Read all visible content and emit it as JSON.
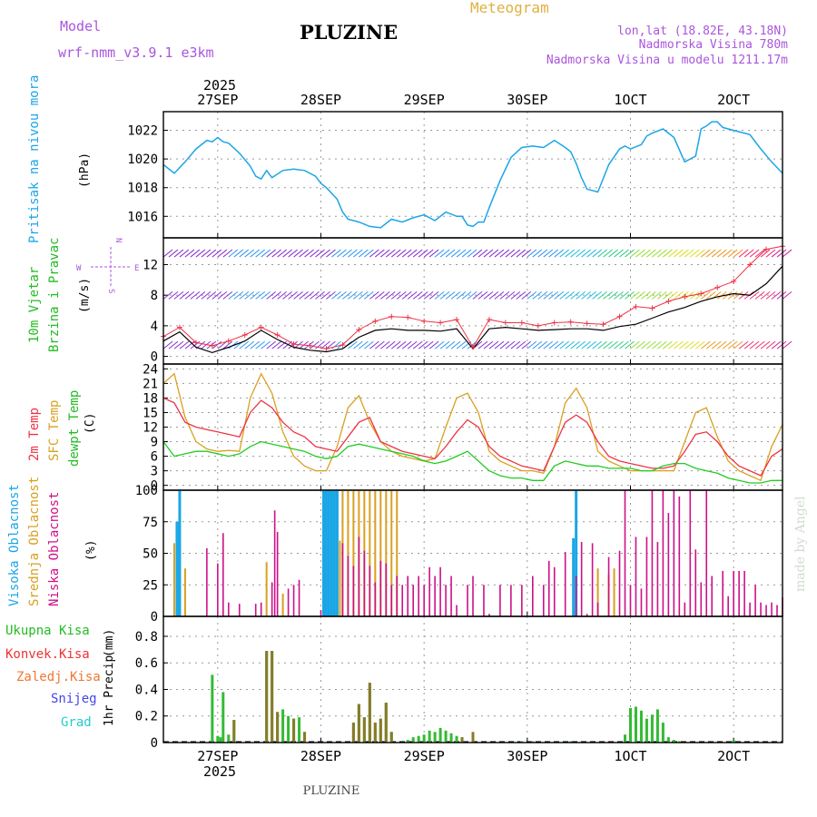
{
  "header": {
    "model_label": "Model",
    "model_name": "wrf-nmm_v3.9.1 e3km",
    "station": "PLUZINE",
    "meteogram_label": "Meteogram",
    "lonlat": "lon,lat (18.82E, 43.18N)",
    "altitude": "Nadmorska Visina 780m",
    "model_altitude": "Nadmorska Visina u modelu 1211.17m",
    "footer_station": "PLUZINE",
    "watermark": "made by Angel"
  },
  "colors": {
    "pressure": "#1ba6e6",
    "wind_speed_axis": "#22bb22",
    "wind_dir_axis": "#22bb22",
    "t2m": "#ee3344",
    "tsfc": "#d9a020",
    "dewpt": "#22cc22",
    "cloud_high": "#1ba6e6",
    "cloud_mid": "#d9a020",
    "cloud_low": "#cc1188",
    "precip_total": "#33bb33",
    "precip_conv": "#ee3333",
    "precip_frozen": "#ee7733",
    "precip_snow": "#4444ee",
    "precip_graupel": "#22cccc",
    "title_purple": "#aa55dd",
    "meteogram_gold": "#e0b040"
  },
  "time_axis": {
    "year": "2025",
    "start_hour": 0,
    "end_hour": 114,
    "days": [
      {
        "label": "27SEP",
        "hour": 10
      },
      {
        "label": "28SEP",
        "hour": 29
      },
      {
        "label": "29SEP",
        "hour": 48
      },
      {
        "label": "30SEP",
        "hour": 67
      },
      {
        "label": "1OCT",
        "hour": 86
      },
      {
        "label": "2OCT",
        "hour": 105
      }
    ]
  },
  "chart_data": [
    {
      "type": "line",
      "id": "pressure",
      "ylabel_main": "Pritisak na nivou mora",
      "ylabel_unit": "(hPa)",
      "ylim": [
        1014.5,
        1023.3
      ],
      "yticks": [
        1016,
        1018,
        1020,
        1022
      ],
      "x": [
        0,
        2,
        4,
        6,
        8,
        9,
        10,
        11,
        12,
        14,
        16,
        17,
        18,
        19,
        20,
        22,
        24,
        26,
        28,
        29,
        30,
        32,
        33,
        34,
        36,
        38,
        40,
        42,
        44,
        46,
        48,
        50,
        52,
        54,
        55,
        56,
        57,
        58,
        59,
        60,
        62,
        64,
        66,
        68,
        70,
        72,
        74,
        75,
        76,
        77,
        78,
        80,
        82,
        84,
        85,
        86,
        88,
        89,
        90,
        92,
        94,
        96,
        98,
        99,
        100,
        101,
        102,
        103,
        104,
        106,
        108,
        110,
        112,
        114
      ],
      "series": [
        {
          "name": "MSLP",
          "values": [
            1019.6,
            1019.0,
            1019.8,
            1020.7,
            1021.3,
            1021.2,
            1021.5,
            1021.2,
            1021.1,
            1020.4,
            1019.5,
            1018.8,
            1018.6,
            1019.2,
            1018.7,
            1019.2,
            1019.3,
            1019.2,
            1018.8,
            1018.3,
            1018.0,
            1017.2,
            1016.3,
            1015.8,
            1015.6,
            1015.3,
            1015.2,
            1015.8,
            1015.6,
            1015.9,
            1016.1,
            1015.7,
            1016.3,
            1016.0,
            1016.0,
            1015.4,
            1015.3,
            1015.6,
            1015.6,
            1016.6,
            1018.5,
            1020.1,
            1020.8,
            1020.9,
            1020.8,
            1021.3,
            1020.8,
            1020.5,
            1019.7,
            1018.7,
            1017.9,
            1017.7,
            1019.6,
            1020.7,
            1020.9,
            1020.7,
            1021.0,
            1021.6,
            1021.8,
            1022.1,
            1021.5,
            1019.8,
            1020.2,
            1022.1,
            1022.3,
            1022.6,
            1022.6,
            1022.2,
            1022.1,
            1021.9,
            1021.7,
            1020.7,
            1019.8,
            1019.0
          ]
        }
      ]
    },
    {
      "type": "line",
      "id": "wind",
      "ylabel_main": "10m Vjetar",
      "ylabel_sub": "Brzina i Pravac",
      "ylabel_unit": "(m/s)",
      "ylim": [
        -1,
        15.5
      ],
      "yticks": [
        0,
        4,
        8,
        12
      ],
      "compass": [
        "N",
        "E",
        "S",
        "W"
      ],
      "x": [
        0,
        3,
        6,
        9,
        12,
        15,
        18,
        21,
        24,
        27,
        30,
        33,
        36,
        39,
        42,
        45,
        48,
        51,
        54,
        57,
        60,
        63,
        66,
        69,
        72,
        75,
        78,
        81,
        84,
        87,
        90,
        93,
        96,
        99,
        102,
        105,
        108,
        111,
        114
      ],
      "series": [
        {
          "name": "speed",
          "values": [
            2.0,
            3.2,
            1.2,
            0.5,
            1.2,
            2.0,
            3.4,
            2.2,
            1.2,
            0.8,
            0.6,
            1.0,
            2.5,
            3.4,
            3.6,
            3.4,
            3.4,
            3.3,
            3.6,
            1.0,
            3.6,
            3.8,
            3.6,
            3.4,
            3.5,
            3.6,
            3.6,
            3.4,
            3.9,
            4.2,
            5.0,
            5.8,
            6.4,
            7.2,
            7.8,
            8.2,
            8.0,
            9.5,
            11.8
          ]
        },
        {
          "name": "gust",
          "values": [
            2.6,
            3.8,
            1.8,
            1.4,
            2.0,
            2.8,
            3.8,
            2.8,
            1.6,
            1.4,
            1.0,
            1.5,
            3.5,
            4.6,
            5.2,
            5.1,
            4.6,
            4.4,
            4.8,
            1.2,
            4.8,
            4.4,
            4.4,
            4.0,
            4.4,
            4.5,
            4.3,
            4.2,
            5.2,
            6.5,
            6.3,
            7.2,
            7.8,
            8.2,
            9.0,
            9.8,
            12.0,
            14.0,
            14.4
          ]
        }
      ]
    },
    {
      "type": "line",
      "id": "temperature",
      "ylabel_main": "2m Temp",
      "ylabel_sub": "SFC Temp",
      "ylabel_sub2": "dewpt Temp",
      "ylabel_unit": "(C)",
      "ylim": [
        -1,
        25
      ],
      "yticks": [
        0,
        3,
        6,
        9,
        12,
        15,
        18,
        21,
        24
      ],
      "x": [
        0,
        2,
        4,
        6,
        8,
        10,
        12,
        14,
        16,
        18,
        20,
        22,
        24,
        26,
        28,
        30,
        32,
        34,
        36,
        38,
        40,
        42,
        44,
        46,
        48,
        50,
        52,
        54,
        56,
        58,
        60,
        62,
        64,
        66,
        68,
        70,
        72,
        74,
        76,
        78,
        80,
        82,
        84,
        86,
        88,
        90,
        92,
        94,
        96,
        98,
        100,
        102,
        104,
        106,
        108,
        110,
        112,
        114
      ],
      "series": [
        {
          "name": "2m Temp",
          "values": [
            18,
            17,
            13,
            12,
            11.5,
            11,
            10.5,
            10,
            15,
            17.5,
            16,
            13,
            11,
            10,
            8,
            7.5,
            7,
            10,
            13,
            14,
            9,
            8,
            7,
            6.5,
            6,
            5.5,
            8,
            11,
            13.5,
            12,
            8,
            6,
            5,
            4,
            3.5,
            3,
            8,
            13,
            14.5,
            13,
            9,
            6,
            5,
            4.5,
            4,
            3.5,
            3.5,
            4,
            7,
            10.5,
            11,
            9,
            6,
            4,
            3,
            2,
            6,
            7.5
          ]
        },
        {
          "name": "SFC Temp",
          "values": [
            21,
            23,
            14,
            9,
            7.5,
            7,
            7.2,
            7,
            18,
            23,
            19,
            11,
            6,
            4,
            3,
            3,
            8,
            16,
            18.5,
            13,
            9,
            7,
            6,
            5.5,
            5,
            5.5,
            12,
            18,
            19,
            15,
            7,
            5,
            4,
            3,
            3,
            2.5,
            8,
            17,
            20,
            16,
            7,
            5,
            4,
            3,
            3,
            3,
            3,
            3,
            9,
            15,
            16,
            10,
            5,
            3,
            2,
            1,
            8,
            12.5
          ]
        },
        {
          "name": "dewpt Temp",
          "values": [
            9,
            6,
            6.5,
            7,
            7,
            6.5,
            6,
            6.5,
            8,
            9,
            8.5,
            8,
            7.5,
            7,
            6,
            5.5,
            6,
            8,
            8.5,
            8,
            7.5,
            7,
            6.5,
            6,
            5,
            4.5,
            5,
            6,
            7,
            5,
            3,
            2,
            1.5,
            1.5,
            1,
            1,
            4,
            5,
            4.5,
            4,
            4,
            3.5,
            3.5,
            3.5,
            3,
            3,
            4,
            4.5,
            4.5,
            3.5,
            3,
            2.5,
            1.5,
            1,
            0.5,
            0.5,
            1,
            1
          ]
        }
      ]
    },
    {
      "type": "bar",
      "id": "clouds",
      "ylabel_main": "Visoka Oblacnost",
      "ylabel_sub": "Srednja Oblacnost",
      "ylabel_sub2": "Niska Oblacnost",
      "ylabel_unit": "(%)",
      "ylim": [
        0,
        100
      ],
      "yticks": [
        0,
        25,
        50,
        75,
        100
      ],
      "series": [
        {
          "name": "high",
          "x": [
            2.5,
            3.0,
            29.5,
            30.0,
            30.5,
            31.0,
            31.5,
            32.0,
            75.5,
            76.0
          ],
          "values": [
            75,
            100,
            100,
            100,
            100,
            100,
            100,
            100,
            62,
            100
          ]
        },
        {
          "name": "mid",
          "x": [
            2.0,
            4.0,
            19.0,
            22.0,
            32.5,
            33.0,
            34.0,
            35.0,
            36.0,
            37.0,
            38.0,
            39.0,
            40.0,
            41.0,
            42.0,
            43.0,
            80.0,
            82.0,
            83.0
          ],
          "values": [
            58,
            38,
            43,
            18,
            60,
            100,
            100,
            100,
            100,
            100,
            100,
            100,
            100,
            100,
            100,
            100,
            38,
            33,
            38
          ]
        },
        {
          "name": "low",
          "x": [
            8,
            10,
            11,
            12,
            14,
            17,
            18,
            20,
            20.5,
            21,
            23,
            24,
            25,
            29,
            33,
            34,
            35,
            36,
            37,
            38,
            39,
            40,
            41,
            42,
            43,
            44,
            45,
            46,
            47,
            48,
            49,
            50,
            51,
            52,
            53,
            54,
            56,
            57,
            59,
            60,
            62,
            64,
            66,
            68,
            70,
            71,
            72,
            74,
            76,
            77,
            78,
            79,
            80,
            82,
            84,
            85,
            86,
            87,
            88,
            89,
            90,
            91,
            92,
            93,
            94,
            95,
            96,
            97,
            98,
            99,
            100,
            101,
            103,
            104,
            105,
            106,
            107,
            108,
            109,
            110,
            111,
            112,
            113,
            114
          ],
          "values": [
            54,
            42,
            66,
            11,
            10,
            10,
            11,
            27,
            84,
            67,
            22,
            25,
            29,
            5,
            58,
            48,
            40,
            63,
            52,
            40,
            27,
            44,
            42,
            25,
            32,
            25,
            32,
            25,
            32,
            25,
            39,
            32,
            39,
            25,
            32,
            9,
            25,
            32,
            25,
            2,
            25,
            25,
            25,
            32,
            25,
            44,
            39,
            51,
            32,
            59,
            2,
            58,
            11,
            47,
            52,
            100,
            25,
            63,
            22,
            63,
            100,
            59,
            100,
            82,
            100,
            95,
            11,
            100,
            53,
            27,
            100,
            32,
            36,
            16,
            36,
            36,
            36,
            11,
            25,
            11,
            9,
            11,
            9,
            15
          ]
        }
      ]
    },
    {
      "type": "bar",
      "id": "precip",
      "ylabel_main": "1hr Precip",
      "ylabel_unit": "(mm)",
      "legend": [
        "Ukupna Kisa",
        "Konvek.Kisa",
        "Zaledj.Kisa",
        "Snijeg",
        "Grad"
      ],
      "ylim": [
        0,
        0.95
      ],
      "yticks": [
        0,
        0.2,
        0.4,
        0.6,
        0.8
      ],
      "series": [
        {
          "name": "total",
          "x": [
            9,
            10,
            10.5,
            11,
            12,
            13,
            19,
            20,
            21,
            22,
            23,
            24,
            25,
            26,
            35,
            36,
            37,
            38,
            39,
            40,
            41,
            42,
            45,
            46,
            47,
            48,
            49,
            50,
            51,
            52,
            53,
            54,
            55,
            57,
            66,
            68,
            75,
            85,
            86,
            87,
            88,
            89,
            90,
            91,
            92,
            93,
            94,
            95,
            105
          ],
          "values": [
            0.51,
            0.05,
            0.04,
            0.38,
            0.06,
            0.17,
            0.69,
            0.69,
            0.23,
            0.25,
            0.2,
            0.18,
            0.19,
            0.08,
            0.15,
            0.29,
            0.19,
            0.45,
            0.15,
            0.18,
            0.3,
            0.08,
            0.02,
            0.04,
            0.05,
            0.06,
            0.09,
            0.08,
            0.11,
            0.09,
            0.07,
            0.05,
            0.04,
            0.03,
            0.01,
            0.01,
            0.01,
            0.06,
            0.26,
            0.27,
            0.24,
            0.18,
            0.21,
            0.25,
            0.15,
            0.04,
            0.02,
            0.01,
            0.02
          ]
        },
        {
          "name": "convective",
          "x": [
            13,
            19,
            20,
            21,
            24,
            26,
            35,
            36,
            37,
            38,
            39,
            40,
            41,
            42,
            55,
            57
          ],
          "values": [
            0.17,
            0.69,
            0.69,
            0.23,
            0.18,
            0.08,
            0.15,
            0.29,
            0.19,
            0.45,
            0.15,
            0.18,
            0.3,
            0.08,
            0.04,
            0.08
          ]
        }
      ]
    }
  ]
}
